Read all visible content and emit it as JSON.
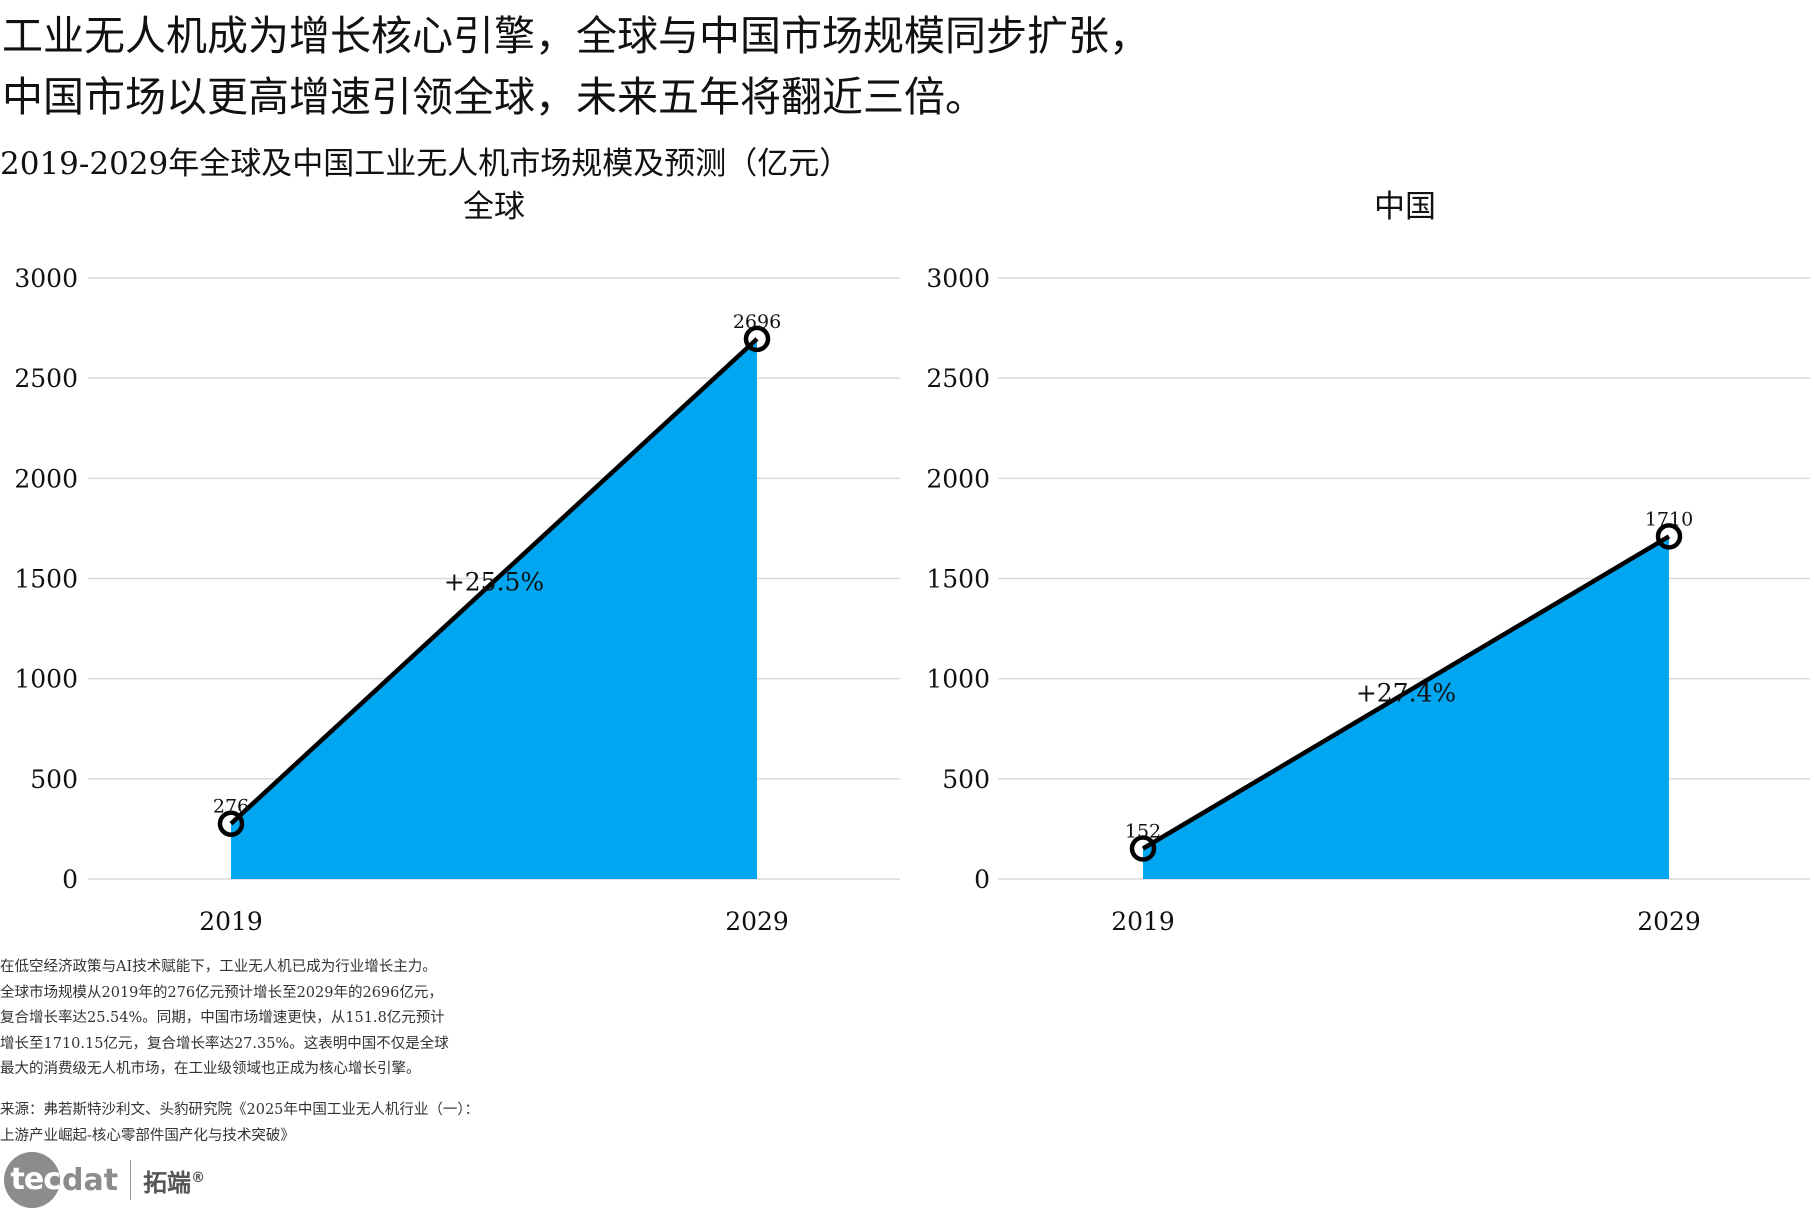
{
  "headline": {
    "line1": "工业无人机成为增长核心引擎，全球与中国市场规模同步扩张，",
    "line2": "中国市场以更高增速引领全球，未来五年将翻近三倍。"
  },
  "subtitle": "2019-2029年全球及中国工业无人机市场规模及预测（亿元）",
  "colors": {
    "area": "#00A6F0",
    "line": "#000000",
    "grid": "#d9d9d9",
    "text": "#111111"
  },
  "chart_data": [
    {
      "type": "area",
      "title": "全球",
      "x": [
        "2019",
        "2029"
      ],
      "values": [
        276,
        2696
      ],
      "data_labels": [
        "276",
        "2696"
      ],
      "annotation": "+25.5%",
      "ylim": [
        0,
        3000
      ],
      "yticks": [
        0,
        500,
        1000,
        1500,
        2000,
        2500,
        3000
      ],
      "grid": true,
      "legend": "none"
    },
    {
      "type": "area",
      "title": "中国",
      "x": [
        "2019",
        "2029"
      ],
      "values": [
        152,
        1710
      ],
      "data_labels": [
        "152",
        "1710"
      ],
      "annotation": "+27.4%",
      "ylim": [
        0,
        3000
      ],
      "yticks": [
        0,
        500,
        1000,
        1500,
        2000,
        2500,
        3000
      ],
      "grid": true,
      "legend": "none"
    }
  ],
  "description": [
    "在低空经济政策与AI技术赋能下，工业无人机已成为行业增长主力。",
    "全球市场规模从2019年的276亿元预计增长至2029年的2696亿元，",
    "复合增长率达25.54%。同期，中国市场增速更快，从151.8亿元预计",
    "增长至1710.15亿元，复合增长率达27.35%。这表明中国不仅是全球",
    "最大的消费级无人机市场，在工业级领域也正成为核心增长引擎。"
  ],
  "source": [
    "来源：弗若斯特沙利文、头豹研究院《2025年中国工业无人机行业（一）：",
    "上游产业崛起-核心零部件国产化与技术突破》"
  ],
  "logo": {
    "mark": "tec",
    "text": "dat",
    "cn": "拓端",
    "reg": "®"
  }
}
